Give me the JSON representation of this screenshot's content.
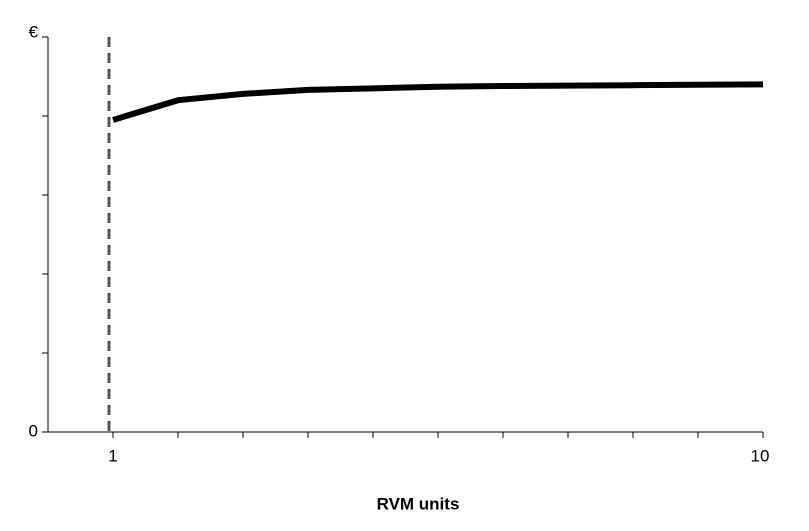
{
  "chart_data": {
    "type": "line",
    "x_label": "RVM units",
    "x": [
      1,
      1.9,
      2.8,
      3.7,
      4.6,
      5.5,
      6.4,
      7.3,
      8.2,
      9.1,
      10
    ],
    "series": [
      {
        "color": "#000000",
        "values": [
          3.95,
          4.2,
          4.28,
          4.33,
          4.35,
          4.37,
          4.38,
          4.385,
          4.39,
          4.395,
          4.4
        ]
      }
    ],
    "xlim": [
      0.1,
      10
    ],
    "xticks": [
      1,
      10
    ],
    "minor_xticks": [
      1.9,
      2.8,
      3.7,
      4.6,
      5.5,
      6.4,
      7.3,
      8.2,
      9.1
    ],
    "ylim": [
      0,
      5
    ],
    "yticks": [
      0,
      {
        "value": 5,
        "label": "€"
      }
    ],
    "minor_yticks": [
      1,
      2,
      3,
      4
    ],
    "vline": {
      "x": 1,
      "color": "#555555"
    },
    "grid": false
  }
}
